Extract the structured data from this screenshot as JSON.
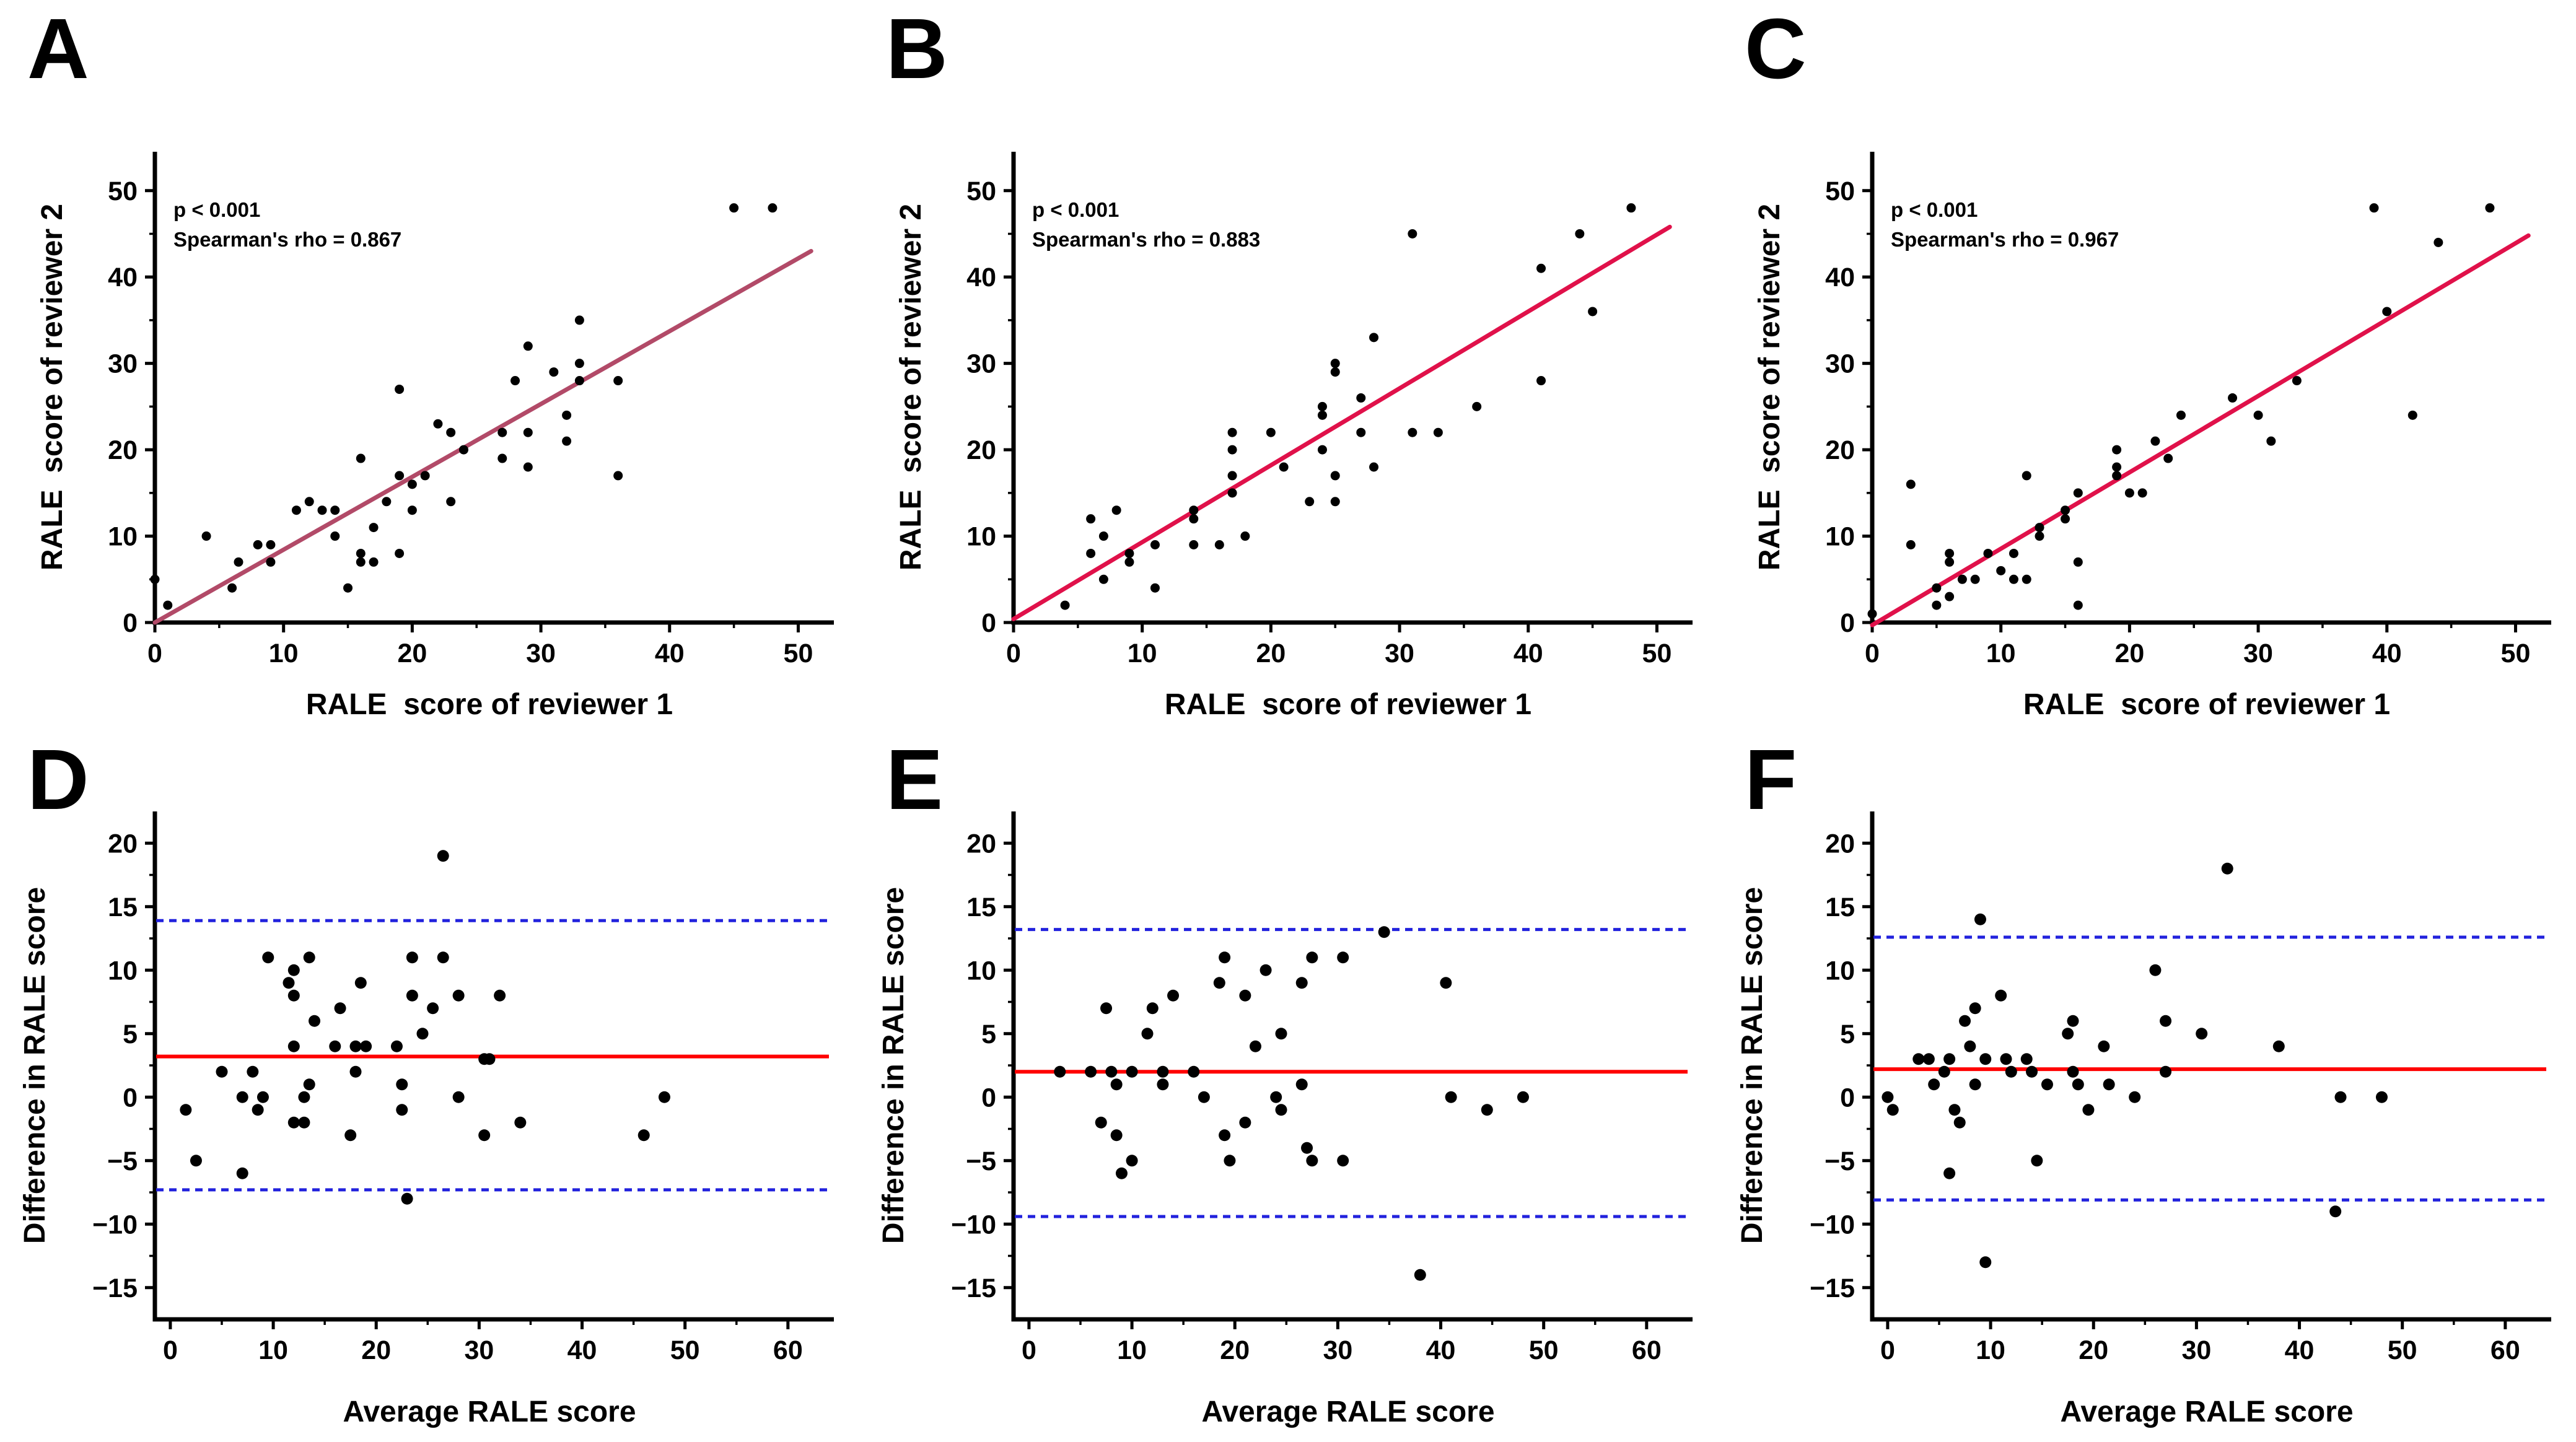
{
  "figure": {
    "background": "#ffffff",
    "description": "Six-panel figure: scatter plots of RALE scores between reviewers (A-C) and Bland-Altman plots (D-F)"
  },
  "chart_data": [
    {
      "id": "A",
      "panel_label": "A",
      "row": "top",
      "type": "scatter",
      "stats": [
        "p < 0.001",
        "Spearman's rho = 0.867"
      ],
      "xlabel": "RALE  score of reviewer 1",
      "ylabel": "RALE  score of reviewer 2",
      "xlim": [
        0,
        52
      ],
      "ylim": [
        0,
        54.5
      ],
      "xticks": [
        0,
        10,
        20,
        30,
        40,
        50
      ],
      "xminor": [
        5,
        15,
        25,
        35,
        45
      ],
      "yticks": [
        0,
        10,
        20,
        30,
        40,
        50
      ],
      "yminor": [
        5,
        15,
        25,
        35,
        45
      ],
      "grid": false,
      "point_color": "#000000",
      "fit_line": {
        "x1": 0,
        "y1": 0,
        "x2": 51,
        "y2": 43,
        "color": "#b24a68"
      },
      "points": [
        [
          0,
          5
        ],
        [
          1,
          2
        ],
        [
          4,
          10
        ],
        [
          6,
          4
        ],
        [
          6.5,
          7
        ],
        [
          8,
          9
        ],
        [
          9,
          9
        ],
        [
          9,
          7
        ],
        [
          11,
          13
        ],
        [
          12,
          14
        ],
        [
          13,
          13
        ],
        [
          14,
          13
        ],
        [
          14,
          10
        ],
        [
          15,
          4
        ],
        [
          16,
          19
        ],
        [
          16,
          8
        ],
        [
          16,
          7
        ],
        [
          17,
          11
        ],
        [
          17,
          7
        ],
        [
          18,
          14
        ],
        [
          19,
          27
        ],
        [
          19,
          17
        ],
        [
          19,
          8
        ],
        [
          20,
          16
        ],
        [
          20,
          13
        ],
        [
          21,
          17
        ],
        [
          22,
          23
        ],
        [
          23,
          22
        ],
        [
          23,
          14
        ],
        [
          24,
          20
        ],
        [
          27,
          22
        ],
        [
          27,
          19
        ],
        [
          28,
          28
        ],
        [
          29,
          32
        ],
        [
          29,
          22
        ],
        [
          29,
          18
        ],
        [
          31,
          29
        ],
        [
          32,
          24
        ],
        [
          32,
          21
        ],
        [
          33,
          35
        ],
        [
          33,
          30
        ],
        [
          33,
          28
        ],
        [
          36,
          28
        ],
        [
          36,
          17
        ],
        [
          45,
          48
        ],
        [
          48,
          48
        ]
      ]
    },
    {
      "id": "B",
      "panel_label": "B",
      "row": "top",
      "type": "scatter",
      "stats": [
        "p < 0.001",
        "Spearman's rho = 0.883"
      ],
      "xlabel": "RALE  score of reviewer 1",
      "ylabel": "RALE  score of reviewer 2",
      "xlim": [
        0,
        52
      ],
      "ylim": [
        0,
        54.5
      ],
      "xticks": [
        0,
        10,
        20,
        30,
        40,
        50
      ],
      "xminor": [
        5,
        15,
        25,
        35,
        45
      ],
      "yticks": [
        0,
        10,
        20,
        30,
        40,
        50
      ],
      "yminor": [
        5,
        15,
        25,
        35,
        45
      ],
      "grid": false,
      "point_color": "#000000",
      "fit_line": {
        "x1": 0,
        "y1": 0.4,
        "x2": 51,
        "y2": 45.8,
        "color": "#e0114a"
      },
      "points": [
        [
          4,
          2
        ],
        [
          6,
          12
        ],
        [
          6,
          8
        ],
        [
          7,
          10
        ],
        [
          7,
          5
        ],
        [
          8,
          13
        ],
        [
          9,
          8
        ],
        [
          9,
          7
        ],
        [
          11,
          9
        ],
        [
          11,
          4
        ],
        [
          14,
          13
        ],
        [
          14,
          12
        ],
        [
          14,
          9
        ],
        [
          16,
          9
        ],
        [
          17,
          22
        ],
        [
          17,
          20
        ],
        [
          17,
          17
        ],
        [
          17,
          15
        ],
        [
          18,
          10
        ],
        [
          20,
          22
        ],
        [
          21,
          18
        ],
        [
          23,
          14
        ],
        [
          24,
          25
        ],
        [
          24,
          24
        ],
        [
          24,
          20
        ],
        [
          25,
          30
        ],
        [
          25,
          29
        ],
        [
          25,
          17
        ],
        [
          25,
          14
        ],
        [
          27,
          26
        ],
        [
          27,
          22
        ],
        [
          28,
          33
        ],
        [
          28,
          18
        ],
        [
          31,
          45
        ],
        [
          31,
          22
        ],
        [
          33,
          22
        ],
        [
          36,
          25
        ],
        [
          41,
          41
        ],
        [
          41,
          28
        ],
        [
          44,
          45
        ],
        [
          45,
          36
        ],
        [
          48,
          48
        ]
      ]
    },
    {
      "id": "C",
      "panel_label": "C",
      "row": "top",
      "type": "scatter",
      "stats": [
        "p < 0.001",
        "Spearman's rho = 0.967"
      ],
      "xlabel": "RALE  score of reviewer 1",
      "ylabel": "RALE  score of reviewer 2",
      "xlim": [
        0,
        52
      ],
      "ylim": [
        0,
        54.5
      ],
      "xticks": [
        0,
        10,
        20,
        30,
        40,
        50
      ],
      "xminor": [
        5,
        15,
        25,
        35,
        45
      ],
      "yticks": [
        0,
        10,
        20,
        30,
        40,
        50
      ],
      "yminor": [
        5,
        15,
        25,
        35,
        45
      ],
      "grid": false,
      "point_color": "#000000",
      "fit_line": {
        "x1": 0,
        "y1": -0.3,
        "x2": 51,
        "y2": 44.8,
        "color": "#e0114a"
      },
      "points": [
        [
          0,
          1
        ],
        [
          3,
          16
        ],
        [
          3,
          9
        ],
        [
          5,
          4
        ],
        [
          5,
          2
        ],
        [
          6,
          8
        ],
        [
          6,
          7
        ],
        [
          6,
          3
        ],
        [
          7,
          5
        ],
        [
          8,
          5
        ],
        [
          9,
          8
        ],
        [
          10,
          6
        ],
        [
          11,
          8
        ],
        [
          11,
          5
        ],
        [
          12,
          17
        ],
        [
          12,
          5
        ],
        [
          13,
          11
        ],
        [
          13,
          10
        ],
        [
          15,
          13
        ],
        [
          15,
          12
        ],
        [
          16,
          15
        ],
        [
          16,
          7
        ],
        [
          16,
          2
        ],
        [
          19,
          20
        ],
        [
          19,
          18
        ],
        [
          19,
          17
        ],
        [
          20,
          15
        ],
        [
          21,
          15
        ],
        [
          22,
          21
        ],
        [
          23,
          19
        ],
        [
          24,
          24
        ],
        [
          28,
          26
        ],
        [
          30,
          24
        ],
        [
          31,
          21
        ],
        [
          33,
          28
        ],
        [
          39,
          48
        ],
        [
          40,
          36
        ],
        [
          42,
          24
        ],
        [
          44,
          44
        ],
        [
          48,
          48
        ]
      ]
    },
    {
      "id": "D",
      "panel_label": "D",
      "row": "bottom",
      "type": "bland-altman",
      "xlabel": "Average RALE score",
      "ylabel": "Difference in RALE score",
      "xlim": [
        -1.5,
        63.5
      ],
      "ylim": [
        -17.5,
        22.5
      ],
      "xticks": [
        0,
        10,
        20,
        30,
        40,
        50,
        60
      ],
      "xminor": [
        5,
        15,
        25,
        35,
        45,
        55
      ],
      "yticks": [
        -15,
        -10,
        -5,
        0,
        5,
        10,
        15,
        20
      ],
      "yminor": [
        -12.5,
        -7.5,
        -2.5,
        2.5,
        7.5,
        12.5,
        17.5
      ],
      "grid": false,
      "point_color": "#000000",
      "mean_line": {
        "value": 3.2,
        "color": "#ff0000"
      },
      "upper_loa": {
        "value": 13.9,
        "color": "#2222dd"
      },
      "lower_loa": {
        "value": -7.3,
        "color": "#2222dd"
      },
      "points": [
        [
          1.5,
          -1
        ],
        [
          2.5,
          -5
        ],
        [
          5,
          2
        ],
        [
          7,
          0
        ],
        [
          7,
          -6
        ],
        [
          8,
          2
        ],
        [
          8.5,
          -1
        ],
        [
          9,
          0
        ],
        [
          9.5,
          11
        ],
        [
          11.5,
          9
        ],
        [
          12,
          10
        ],
        [
          12,
          8
        ],
        [
          12,
          4
        ],
        [
          12,
          -2
        ],
        [
          13,
          0
        ],
        [
          13,
          -2
        ],
        [
          13.5,
          11
        ],
        [
          13.5,
          1
        ],
        [
          14,
          6
        ],
        [
          16,
          4
        ],
        [
          16.5,
          7
        ],
        [
          17.5,
          -3
        ],
        [
          18,
          4
        ],
        [
          18,
          2
        ],
        [
          18.5,
          9
        ],
        [
          19,
          4
        ],
        [
          22,
          4
        ],
        [
          22.5,
          1
        ],
        [
          22.5,
          -1
        ],
        [
          23,
          -8
        ],
        [
          23.5,
          11
        ],
        [
          23.5,
          8
        ],
        [
          24.5,
          5
        ],
        [
          25.5,
          7
        ],
        [
          26.5,
          19
        ],
        [
          26.5,
          11
        ],
        [
          28,
          8
        ],
        [
          28,
          0
        ],
        [
          30.5,
          3
        ],
        [
          30.5,
          -3
        ],
        [
          31,
          3
        ],
        [
          32,
          8
        ],
        [
          34,
          -2
        ],
        [
          46,
          -3
        ],
        [
          48,
          0
        ]
      ]
    },
    {
      "id": "E",
      "panel_label": "E",
      "row": "bottom",
      "type": "bland-altman",
      "xlabel": "Average RALE score",
      "ylabel": "Difference in RALE score",
      "xlim": [
        -1.5,
        63.5
      ],
      "ylim": [
        -17.5,
        22.5
      ],
      "xticks": [
        0,
        10,
        20,
        30,
        40,
        50,
        60
      ],
      "xminor": [
        5,
        15,
        25,
        35,
        45,
        55
      ],
      "yticks": [
        -15,
        -10,
        -5,
        0,
        5,
        10,
        15,
        20
      ],
      "yminor": [
        -12.5,
        -7.5,
        -2.5,
        2.5,
        7.5,
        12.5,
        17.5
      ],
      "grid": false,
      "point_color": "#000000",
      "mean_line": {
        "value": 2.0,
        "color": "#ff0000"
      },
      "upper_loa": {
        "value": 13.2,
        "color": "#2222dd"
      },
      "lower_loa": {
        "value": -9.4,
        "color": "#2222dd"
      },
      "points": [
        [
          3,
          2
        ],
        [
          6,
          2
        ],
        [
          7,
          -2
        ],
        [
          7.5,
          7
        ],
        [
          8,
          2
        ],
        [
          8.5,
          1
        ],
        [
          8.5,
          -3
        ],
        [
          9,
          -6
        ],
        [
          10,
          2
        ],
        [
          10,
          -5
        ],
        [
          11.5,
          5
        ],
        [
          12,
          7
        ],
        [
          13,
          2
        ],
        [
          13,
          1
        ],
        [
          14,
          8
        ],
        [
          16,
          2
        ],
        [
          17,
          0
        ],
        [
          18.5,
          9
        ],
        [
          19,
          11
        ],
        [
          19,
          -3
        ],
        [
          19.5,
          -5
        ],
        [
          21,
          8
        ],
        [
          21,
          -2
        ],
        [
          22,
          4
        ],
        [
          23,
          10
        ],
        [
          24,
          0
        ],
        [
          24.5,
          5
        ],
        [
          24.5,
          -1
        ],
        [
          26.5,
          9
        ],
        [
          26.5,
          1
        ],
        [
          27,
          -4
        ],
        [
          27.5,
          11
        ],
        [
          27.5,
          -5
        ],
        [
          30.5,
          11
        ],
        [
          30.5,
          -5
        ],
        [
          34.5,
          13
        ],
        [
          38,
          -14
        ],
        [
          40.5,
          9
        ],
        [
          41,
          0
        ],
        [
          44.5,
          -1
        ],
        [
          48,
          0
        ]
      ]
    },
    {
      "id": "F",
      "panel_label": "F",
      "row": "bottom",
      "type": "bland-altman",
      "xlabel": "Average RALE score",
      "ylabel": "Difference in RALE score",
      "xlim": [
        -1.5,
        63.5
      ],
      "ylim": [
        -17.5,
        22.5
      ],
      "xticks": [
        0,
        10,
        20,
        30,
        40,
        50,
        60
      ],
      "xminor": [
        5,
        15,
        25,
        35,
        45,
        55
      ],
      "yticks": [
        -15,
        -10,
        -5,
        0,
        5,
        10,
        15,
        20
      ],
      "yminor": [
        -12.5,
        -7.5,
        -2.5,
        2.5,
        7.5,
        12.5,
        17.5
      ],
      "grid": false,
      "point_color": "#000000",
      "mean_line": {
        "value": 2.2,
        "color": "#ff0000"
      },
      "upper_loa": {
        "value": 12.6,
        "color": "#2222dd"
      },
      "lower_loa": {
        "value": -8.1,
        "color": "#2222dd"
      },
      "points": [
        [
          0,
          0
        ],
        [
          0.5,
          -1
        ],
        [
          3,
          3
        ],
        [
          4,
          3
        ],
        [
          4.5,
          1
        ],
        [
          5.5,
          2
        ],
        [
          6,
          3
        ],
        [
          6,
          -6
        ],
        [
          6.5,
          -1
        ],
        [
          7,
          -2
        ],
        [
          7.5,
          6
        ],
        [
          8,
          4
        ],
        [
          8.5,
          7
        ],
        [
          8.5,
          1
        ],
        [
          9,
          14
        ],
        [
          9.5,
          3
        ],
        [
          9.5,
          -13
        ],
        [
          11,
          8
        ],
        [
          11.5,
          3
        ],
        [
          12,
          2
        ],
        [
          13.5,
          3
        ],
        [
          14,
          2
        ],
        [
          14.5,
          -5
        ],
        [
          15.5,
          1
        ],
        [
          17.5,
          5
        ],
        [
          18,
          6
        ],
        [
          18,
          2
        ],
        [
          18.5,
          1
        ],
        [
          19.5,
          -1
        ],
        [
          21,
          4
        ],
        [
          21.5,
          1
        ],
        [
          24,
          0
        ],
        [
          26,
          10
        ],
        [
          27,
          6
        ],
        [
          27,
          2
        ],
        [
          30.5,
          5
        ],
        [
          33,
          18
        ],
        [
          38,
          4
        ],
        [
          43.5,
          -9
        ],
        [
          44,
          0
        ],
        [
          48,
          0
        ]
      ]
    }
  ]
}
